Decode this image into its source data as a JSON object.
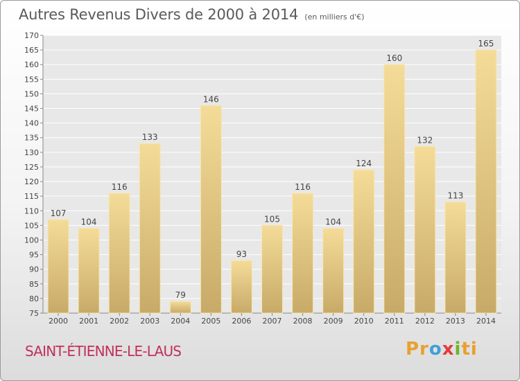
{
  "title": "Autres Revenus Divers de 2000 à 2014",
  "unit_note": "(en milliers d'€)",
  "commune": "SAINT-ÉTIENNE-LE-LAUS",
  "logo": {
    "text": "Proxiti",
    "parts": [
      "Pr",
      "o",
      "x",
      "i",
      "ti"
    ]
  },
  "colors": {
    "bar_light": "#f4dc98",
    "bar_dark": "#c8aa68",
    "axis_text": "#444444",
    "grid": "#ffffff",
    "title": "#5a5a5a",
    "commune": "#c0305a"
  },
  "chart_data": {
    "type": "bar",
    "categories": [
      "2000",
      "2001",
      "2002",
      "2003",
      "2004",
      "2005",
      "2006",
      "2007",
      "2008",
      "2009",
      "2010",
      "2011",
      "2012",
      "2013",
      "2014"
    ],
    "values": [
      107,
      104,
      116,
      133,
      79,
      146,
      93,
      105,
      116,
      104,
      124,
      160,
      132,
      113,
      165
    ],
    "ylim": [
      75,
      170
    ],
    "ytick_step": 5,
    "grid": true,
    "xlabel": "",
    "ylabel": ""
  }
}
